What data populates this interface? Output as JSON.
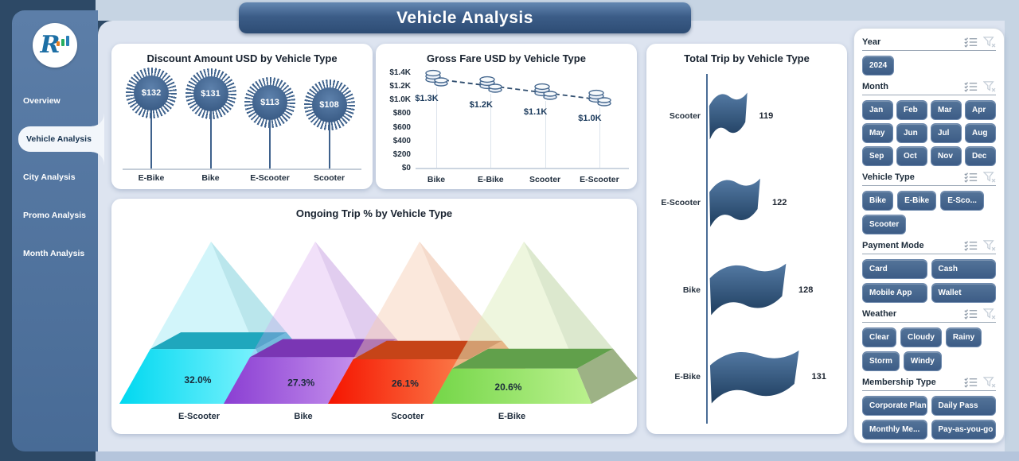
{
  "app": {
    "title": "Vehicle Analysis"
  },
  "sidebar": {
    "items": [
      {
        "label": "Overview",
        "active": false
      },
      {
        "label": "Vehicle Analysis",
        "active": true
      },
      {
        "label": "City Analysis",
        "active": false
      },
      {
        "label": "Promo Analysis",
        "active": false
      },
      {
        "label": "Month Analysis",
        "active": false
      }
    ]
  },
  "chart_data": [
    {
      "id": "discount",
      "type": "lollipop-star",
      "title": "Discount Amount USD by Vehicle Type",
      "categories": [
        "E-Bike",
        "Bike",
        "E-Scooter",
        "Scooter"
      ],
      "values": [
        132,
        131,
        113,
        108
      ],
      "value_labels": [
        "$132",
        "$131",
        "$113",
        "$108"
      ],
      "marker_color": "#41648e"
    },
    {
      "id": "gross_fare",
      "type": "line",
      "title": "Gross Fare USD by Vehicle Type",
      "categories": [
        "Bike",
        "E-Bike",
        "Scooter",
        "E-Scooter"
      ],
      "values": [
        1300,
        1200,
        1100,
        1000
      ],
      "value_labels": [
        "$1.3K",
        "$1.2K",
        "$1.1K",
        "$1.0K"
      ],
      "y_ticks": [
        1400,
        1200,
        1000,
        800,
        600,
        400,
        200,
        0
      ],
      "y_tick_labels": [
        "$1.4K",
        "$1.2K",
        "$1.0K",
        "$800",
        "$600",
        "$400",
        "$200",
        "$0"
      ],
      "ylim": [
        0,
        1400
      ],
      "line_style": "dashed",
      "line_color": "#2f4d6e",
      "marker": "coin-stack-icon"
    },
    {
      "id": "ongoing",
      "type": "pyramid",
      "title": "Ongoing Trip % by Vehicle Type",
      "categories": [
        "E-Scooter",
        "Bike",
        "Scooter",
        "E-Bike"
      ],
      "values": [
        32.0,
        27.3,
        26.1,
        20.6
      ],
      "value_labels": [
        "32.0%",
        "27.3%",
        "26.1%",
        "20.6%"
      ],
      "colors": [
        {
          "front_a": "#00d8f0",
          "front_b": "#8cf6ff",
          "band": "#1fa7bd",
          "side": "#3cc3d2",
          "upper": "rgba(125,225,240,0.35)",
          "upper_side": "rgba(90,195,210,0.42)"
        },
        {
          "front_a": "#8a3ed2",
          "front_b": "#d0a0f2",
          "band": "#7a36b4",
          "side": "#a86fd6",
          "upper": "rgba(210,160,235,0.32)",
          "upper_side": "rgba(180,130,215,0.40)"
        },
        {
          "front_a": "#f51400",
          "front_b": "#fc8c55",
          "band": "#c64418",
          "side": "#ef7340",
          "upper": "rgba(246,205,178,0.45)",
          "upper_side": "rgba(235,185,155,0.52)"
        },
        {
          "front_a": "#74d648",
          "front_b": "#bbf18e",
          "band": "#61a04b",
          "side": "#97ad7f",
          "upper": "rgba(222,238,192,0.52)",
          "upper_side": "rgba(195,215,170,0.58)"
        }
      ]
    },
    {
      "id": "total_trip",
      "type": "flag",
      "title": "Total Trip by Vehicle Type",
      "categories": [
        "Scooter",
        "E-Scooter",
        "Bike",
        "E-Bike"
      ],
      "values": [
        119,
        122,
        128,
        131
      ],
      "flag_color_top": "#547aa4",
      "flag_color_bottom": "#1e3d5e"
    }
  ],
  "filters": {
    "sections": [
      {
        "label": "Year",
        "layout": "wrap",
        "options": [
          "2024"
        ]
      },
      {
        "label": "Month",
        "layout": "grid4",
        "options": [
          "Jan",
          "Feb",
          "Mar",
          "Apr",
          "May",
          "Jun",
          "Jul",
          "Aug",
          "Sep",
          "Oct",
          "Nov",
          "Dec"
        ]
      },
      {
        "label": "Vehicle Type",
        "layout": "wrap",
        "options": [
          "Bike",
          "E-Bike",
          "E-Sco...",
          "Scooter"
        ]
      },
      {
        "label": "Payment Mode",
        "layout": "grid2",
        "options": [
          "Card",
          "Cash",
          "Mobile App",
          "Wallet"
        ]
      },
      {
        "label": "Weather",
        "layout": "wrap",
        "options": [
          "Clear",
          "Cloudy",
          "Rainy",
          "Storm",
          "Windy"
        ]
      },
      {
        "label": "Membership Type",
        "layout": "grid2",
        "options": [
          "Corporate Plan",
          "Daily Pass",
          "Monthly Me...",
          "Pay-as-you-go"
        ]
      }
    ],
    "header_icons": [
      "select-all-icon",
      "clear-filter-icon"
    ]
  },
  "colors": {
    "frame_navy": "#2d4966",
    "strip_light": "#c6d4e3",
    "main_bg": "#dde4f0",
    "sidebar_blue": "#4f739d",
    "button_blue": "#3d5c86",
    "accent_dark_blue": "#2f4d6e"
  }
}
